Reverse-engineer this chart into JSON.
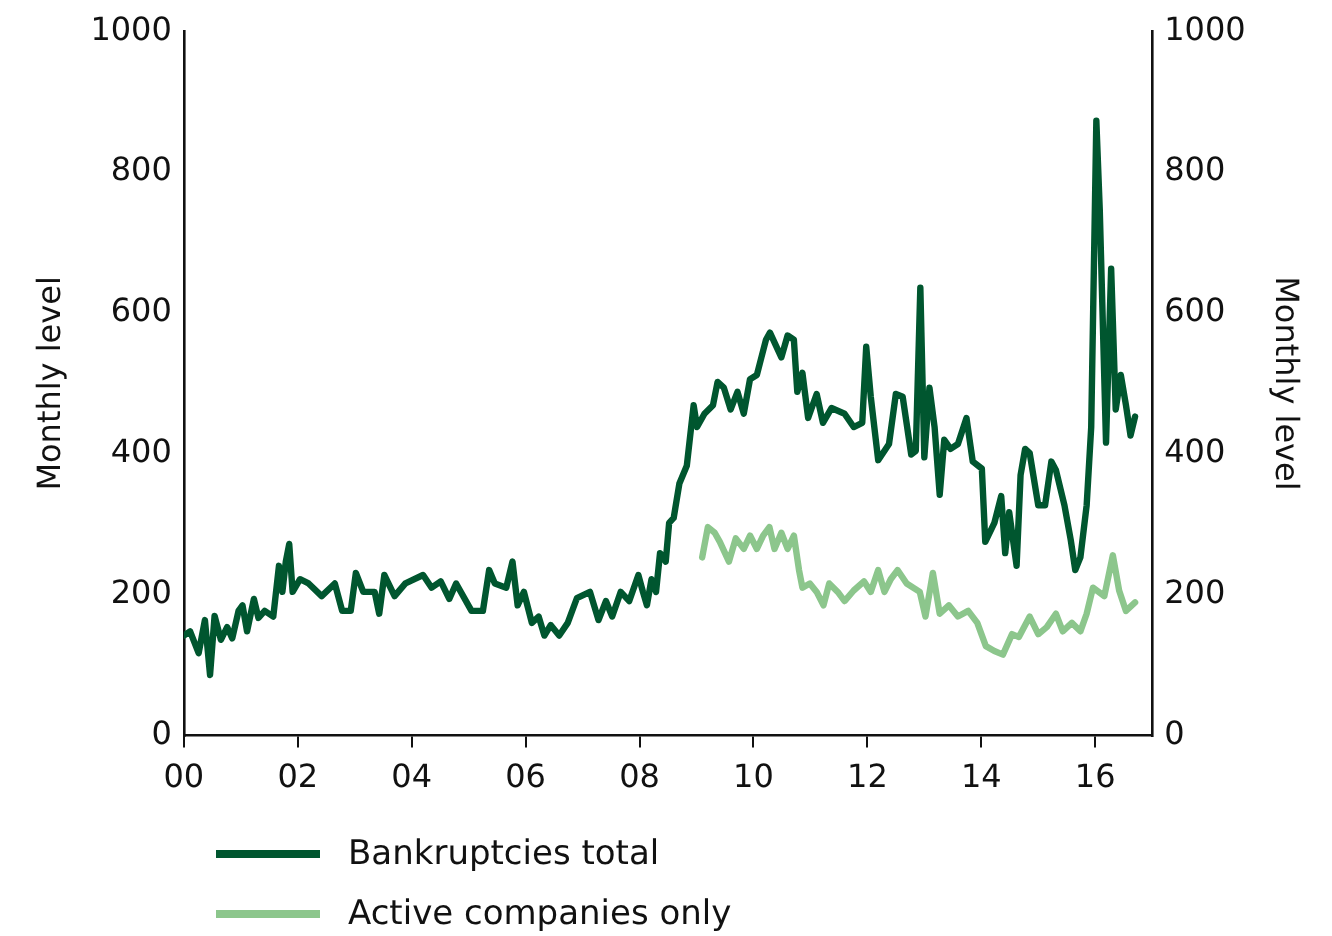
{
  "chart_data": {
    "type": "line",
    "ylabel": "Monthly level",
    "y2label": "Monthly level",
    "xlim": [
      0,
      17
    ],
    "xticks": [
      {
        "value": 0,
        "label": "00"
      },
      {
        "value": 2,
        "label": "02"
      },
      {
        "value": 4,
        "label": "04"
      },
      {
        "value": 6,
        "label": "06"
      },
      {
        "value": 8,
        "label": "08"
      },
      {
        "value": 10,
        "label": "10"
      },
      {
        "value": 12,
        "label": "12"
      },
      {
        "value": 14,
        "label": "14"
      },
      {
        "value": 16,
        "label": "16"
      }
    ],
    "ylim": [
      0,
      1000
    ],
    "yticks": [
      0,
      200,
      400,
      600,
      800,
      1000
    ],
    "y2lim": [
      0,
      1000
    ],
    "y2ticks": [
      0,
      200,
      400,
      600,
      800,
      1000
    ],
    "grid": false,
    "legend": "bottom left",
    "marker": "none",
    "line_style": "solid",
    "series": [
      {
        "name": "Bankruptcies total",
        "color": "#00562f",
        "x": [
          0,
          0.11,
          0.26,
          0.37,
          0.46,
          0.54,
          0.65,
          0.76,
          0.85,
          0.96,
          1.03,
          1.11,
          1.23,
          1.31,
          1.42,
          1.57,
          1.67,
          1.73,
          1.79,
          1.85,
          1.91,
          2.04,
          2.19,
          2.42,
          2.65,
          2.78,
          2.93,
          3.02,
          3.15,
          3.35,
          3.43,
          3.52,
          3.7,
          3.89,
          4.2,
          4.35,
          4.51,
          4.66,
          4.78,
          5.05,
          5.25,
          5.36,
          5.46,
          5.66,
          5.77,
          5.86,
          5.97,
          6.11,
          6.23,
          6.33,
          6.44,
          6.59,
          6.74,
          6.9,
          7.13,
          7.28,
          7.41,
          7.52,
          7.67,
          7.82,
          7.98,
          8.06,
          8.13,
          8.21,
          8.29,
          8.36,
          8.46,
          8.52,
          8.6,
          8.7,
          8.83,
          8.95,
          9.01,
          9.14,
          9.29,
          9.37,
          9.48,
          9.6,
          9.72,
          9.83,
          9.94,
          10.06,
          10.22,
          10.29,
          10.49,
          10.6,
          10.71,
          10.77,
          10.86,
          10.96,
          11.11,
          11.22,
          11.37,
          11.6,
          11.76,
          11.91,
          11.98,
          12.06,
          12.19,
          12.38,
          12.5,
          12.62,
          12.77,
          12.85,
          12.93,
          13,
          13.09,
          13.18,
          13.27,
          13.35,
          13.46,
          13.59,
          13.74,
          13.85,
          14.01,
          14.07,
          14.23,
          14.35,
          14.42,
          14.49,
          14.62,
          14.69,
          14.77,
          14.85,
          15,
          15.12,
          15.23,
          15.31,
          15.46,
          15.57,
          15.65,
          15.74,
          15.85,
          15.93,
          16.02,
          16.08,
          16.19,
          16.28,
          16.36,
          16.45,
          16.54,
          16.62,
          16.7
        ],
        "values": [
          142,
          148,
          117,
          164,
          86,
          170,
          136,
          154,
          138,
          177,
          185,
          148,
          194,
          167,
          177,
          169,
          241,
          204,
          247,
          272,
          204,
          222,
          216,
          198,
          216,
          177,
          177,
          231,
          204,
          204,
          173,
          228,
          198,
          216,
          228,
          210,
          219,
          194,
          216,
          177,
          177,
          235,
          216,
          210,
          247,
          185,
          204,
          160,
          169,
          142,
          157,
          142,
          160,
          195,
          204,
          164,
          191,
          169,
          204,
          191,
          228,
          204,
          185,
          222,
          204,
          259,
          247,
          302,
          309,
          358,
          383,
          469,
          438,
          457,
          469,
          502,
          494,
          463,
          488,
          457,
          506,
          512,
          562,
          572,
          537,
          568,
          562,
          488,
          515,
          451,
          485,
          444,
          465,
          457,
          438,
          444,
          552,
          481,
          391,
          414,
          485,
          481,
          399,
          404,
          636,
          395,
          494,
          438,
          342,
          420,
          407,
          414,
          451,
          389,
          379,
          275,
          302,
          340,
          259,
          317,
          241,
          370,
          407,
          401,
          327,
          327,
          389,
          377,
          327,
          278,
          235,
          253,
          327,
          438,
          873,
          747,
          416,
          663,
          463,
          512,
          469,
          426,
          453
        ]
      },
      {
        "name": "Active companies only",
        "color": "#8cc68c",
        "x": [
          9.1,
          9.2,
          9.32,
          9.41,
          9.57,
          9.69,
          9.83,
          9.94,
          10.06,
          10.17,
          10.28,
          10.37,
          10.49,
          10.6,
          10.71,
          10.8,
          10.86,
          10.99,
          11.11,
          11.23,
          11.33,
          11.48,
          11.6,
          11.76,
          11.94,
          12.06,
          12.19,
          12.3,
          12.41,
          12.53,
          12.69,
          12.92,
          13.02,
          13.15,
          13.27,
          13.43,
          13.59,
          13.77,
          13.93,
          14.08,
          14.23,
          14.38,
          14.54,
          14.66,
          14.85,
          15,
          15.15,
          15.31,
          15.43,
          15.59,
          15.74,
          15.85,
          15.96,
          16.16,
          16.31,
          16.42,
          16.54,
          16.7
        ],
        "values": [
          253,
          296,
          288,
          275,
          247,
          280,
          265,
          284,
          265,
          284,
          296,
          265,
          288,
          265,
          284,
          235,
          210,
          216,
          204,
          185,
          216,
          204,
          191,
          206,
          219,
          204,
          235,
          204,
          222,
          235,
          216,
          204,
          169,
          231,
          173,
          185,
          169,
          177,
          160,
          127,
          120,
          115,
          144,
          140,
          169,
          144,
          154,
          173,
          148,
          160,
          148,
          173,
          210,
          198,
          256,
          206,
          177,
          189
        ]
      }
    ]
  }
}
